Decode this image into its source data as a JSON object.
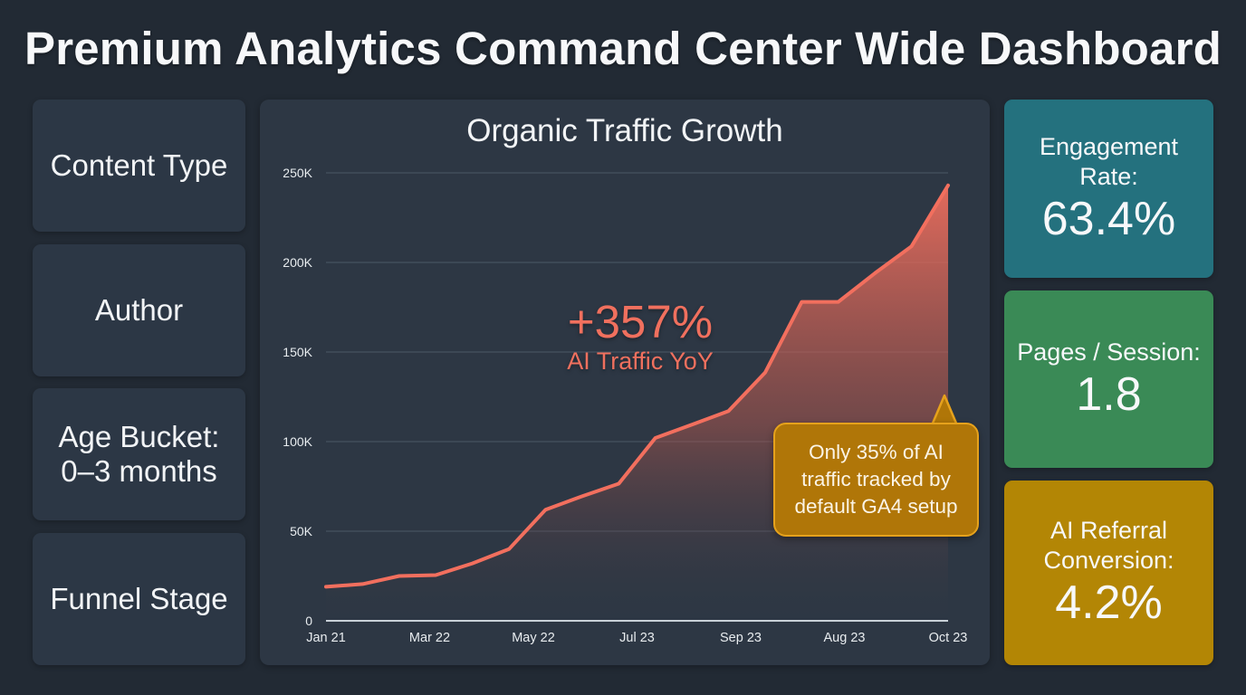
{
  "header": {
    "title": "Premium Analytics Command Center Wide Dashboard"
  },
  "filters": [
    {
      "lines": [
        "Content Type"
      ]
    },
    {
      "lines": [
        "Author"
      ]
    },
    {
      "lines": [
        "Age Bucket:",
        "0–3 months"
      ]
    },
    {
      "lines": [
        "Funnel Stage"
      ]
    }
  ],
  "highlight": {
    "value": "+357%",
    "label": "AI Traffic YoY"
  },
  "callout": {
    "lines": [
      "Only 35% of AI",
      "traffic tracked by",
      "default GA4 setup"
    ]
  },
  "kpis": [
    {
      "label_lines": [
        "Engagement",
        "Rate:"
      ],
      "value": "63.4%",
      "color": "#24717e"
    },
    {
      "label_lines": [
        "Pages / Session:"
      ],
      "value": "1.8",
      "color": "#3a8a56"
    },
    {
      "label_lines": [
        "AI Referral",
        "Conversion:"
      ],
      "value": "4.2%",
      "color": "#b38605"
    }
  ],
  "chart_data": {
    "type": "area",
    "title": "Organic Traffic Growth",
    "xlabel": "",
    "ylabel": "",
    "ylim": [
      0,
      250000
    ],
    "yticks": [
      0,
      50000,
      100000,
      150000,
      200000,
      250000
    ],
    "ytick_labels": [
      "0",
      "50K",
      "100K",
      "150K",
      "200K",
      "250K"
    ],
    "xtick_labels": [
      "Jan 21",
      "Mar 22",
      "May 22",
      "Jul 23",
      "Sep 23",
      "Aug 23",
      "Oct 23"
    ],
    "grid": true,
    "line_color": "#f26f5e",
    "series": [
      {
        "name": "Organic Traffic",
        "values": [
          19000,
          20500,
          25000,
          25500,
          32000,
          40000,
          62000,
          69500,
          76500,
          102000,
          109500,
          117000,
          138500,
          178000,
          178000,
          194000,
          209000,
          243000
        ]
      }
    ]
  }
}
